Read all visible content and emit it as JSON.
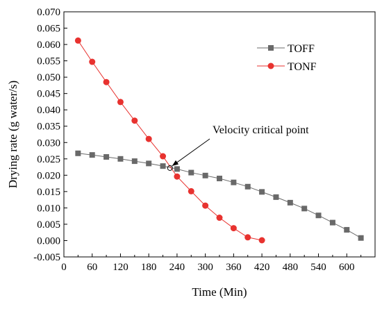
{
  "chart_data": {
    "type": "line",
    "xlabel": "Time (Min)",
    "ylabel": "Drying rate (g water/s)",
    "xlim": [
      0,
      660
    ],
    "ylim": [
      -0.005,
      0.07
    ],
    "xticks": [
      "0",
      "60",
      "120",
      "180",
      "240",
      "300",
      "360",
      "420",
      "480",
      "540",
      "600"
    ],
    "yticks": [
      "-0.005",
      "0.000",
      "0.005",
      "0.010",
      "0.015",
      "0.020",
      "0.025",
      "0.030",
      "0.035",
      "0.040",
      "0.045",
      "0.050",
      "0.055",
      "0.060",
      "0.065",
      "0.070"
    ],
    "legend_position": "top-right",
    "grid": false,
    "series": [
      {
        "name": "TOFF",
        "color": "#696969",
        "marker": "square",
        "x": [
          30,
          60,
          90,
          120,
          150,
          180,
          210,
          240,
          270,
          300,
          330,
          360,
          390,
          420,
          450,
          480,
          510,
          540,
          570,
          600,
          630
        ],
        "y": [
          0.0267,
          0.0262,
          0.0256,
          0.025,
          0.0243,
          0.0236,
          0.0228,
          0.0219,
          0.0208,
          0.0199,
          0.019,
          0.0178,
          0.0165,
          0.0149,
          0.0133,
          0.0116,
          0.0098,
          0.0077,
          0.0055,
          0.0033,
          0.0008
        ]
      },
      {
        "name": "TONF",
        "color": "#e8322f",
        "marker": "circle",
        "x": [
          30,
          60,
          90,
          120,
          150,
          180,
          210,
          240,
          270,
          300,
          330,
          360,
          390,
          420
        ],
        "y": [
          0.0612,
          0.0547,
          0.0485,
          0.0424,
          0.0367,
          0.0311,
          0.0258,
          0.0196,
          0.0151,
          0.0107,
          0.007,
          0.0038,
          0.001,
          0.0001
        ]
      }
    ],
    "annotation": {
      "text": "Velocity critical point",
      "point": {
        "x": 225,
        "y": 0.0222
      }
    }
  }
}
